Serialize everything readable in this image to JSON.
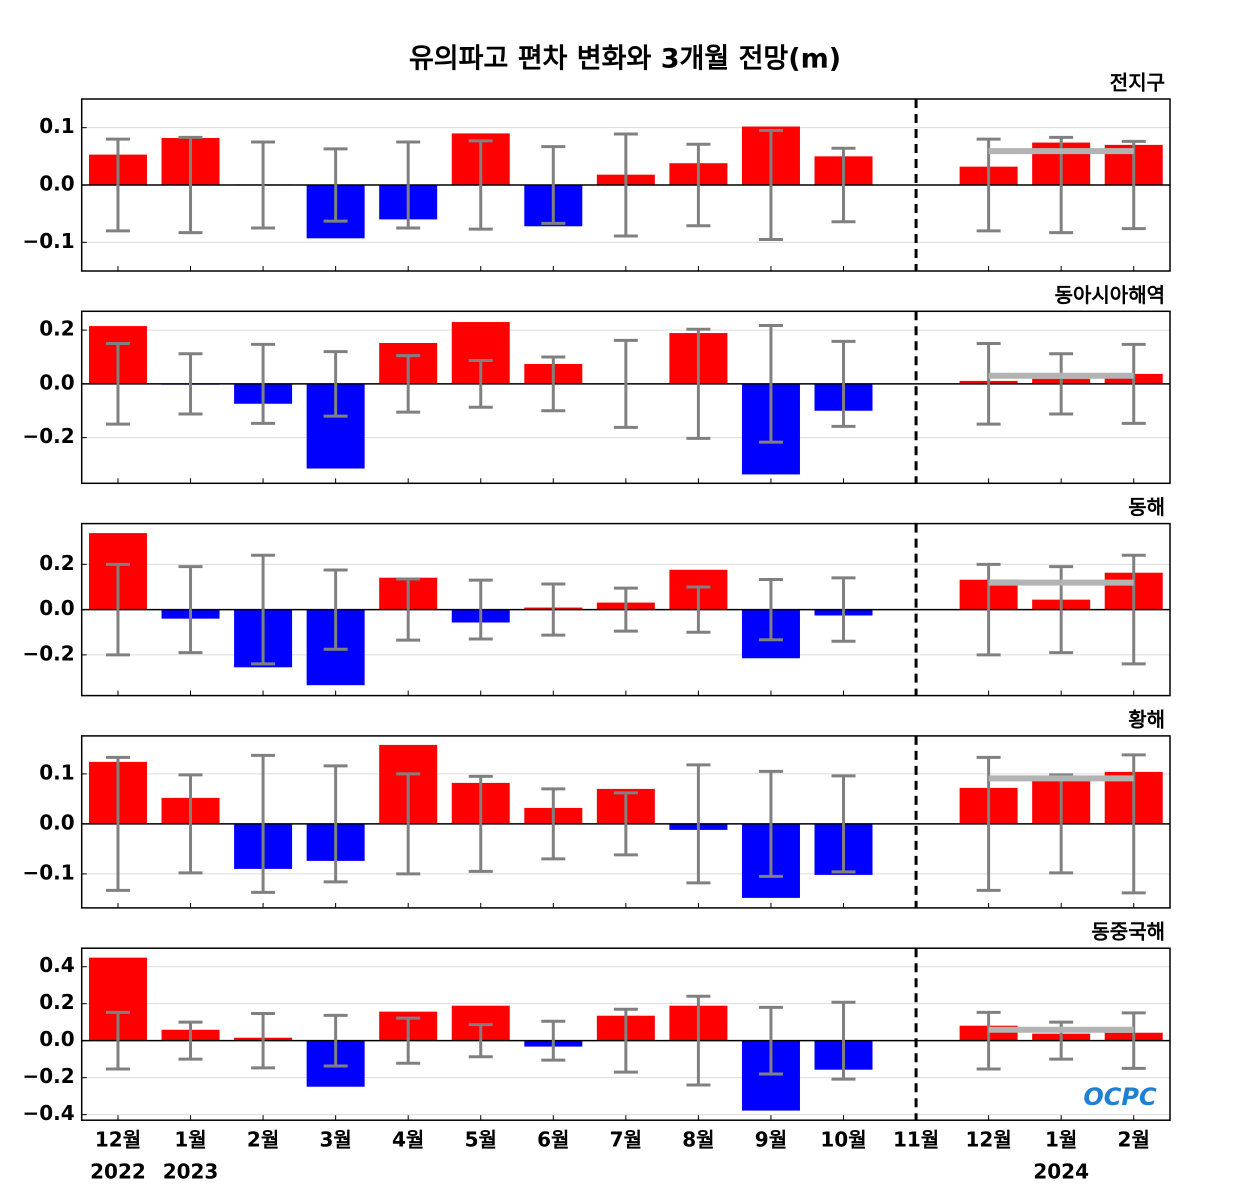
{
  "chart_data": {
    "type": "bar",
    "title": "유의파고 편차 변화와 3개월 전망(m)",
    "categories": [
      "12월",
      "1월",
      "2월",
      "3월",
      "4월",
      "5월",
      "6월",
      "7월",
      "8월",
      "9월",
      "10월",
      "11월",
      "12월",
      "1월",
      "2월"
    ],
    "year_labels": [
      "2022",
      "2023",
      null,
      null,
      null,
      null,
      null,
      null,
      null,
      null,
      null,
      null,
      null,
      "2024",
      null
    ],
    "logo": "OCPC",
    "positive_color": "#ff0000",
    "negative_color": "#0000ff",
    "error_color": "#808080",
    "forecast_color": "#b3b3b3",
    "grid": true,
    "panels": [
      {
        "name": "전지구",
        "values": [
          0.053,
          0.082,
          0.001,
          -0.093,
          -0.06,
          0.09,
          -0.072,
          0.018,
          0.038,
          0.102,
          0.05,
          null,
          0.032,
          0.074,
          0.07
        ],
        "errors": [
          0.08,
          0.083,
          0.075,
          0.063,
          0.075,
          0.077,
          0.067,
          0.089,
          0.071,
          0.095,
          0.064,
          null,
          0.08,
          0.083,
          0.076
        ],
        "forecast_mean": 0.059,
        "ylim": [
          -0.15,
          0.15
        ],
        "yticks": [
          {
            "value": -0.1,
            "label": "−0.1"
          },
          {
            "value": 0,
            "label": "0.0"
          },
          {
            "value": 0.1,
            "label": "0.1"
          }
        ]
      },
      {
        "name": "동아시아해역",
        "values": [
          0.215,
          -0.003,
          -0.074,
          -0.315,
          0.152,
          0.23,
          0.074,
          -0.002,
          0.189,
          -0.337,
          -0.1,
          null,
          0.011,
          0.019,
          0.037
        ],
        "errors": [
          0.15,
          0.112,
          0.147,
          0.12,
          0.105,
          0.087,
          0.1,
          0.162,
          0.203,
          0.217,
          0.158,
          null,
          0.15,
          0.112,
          0.147
        ],
        "forecast_mean": 0.03,
        "ylim": [
          -0.37,
          0.27
        ],
        "yticks": [
          {
            "value": -0.2,
            "label": "−0.2"
          },
          {
            "value": 0,
            "label": "0.0"
          },
          {
            "value": 0.2,
            "label": "0.2"
          }
        ]
      },
      {
        "name": "동해",
        "values": [
          0.338,
          -0.04,
          -0.255,
          -0.334,
          0.141,
          -0.057,
          0.009,
          0.031,
          0.176,
          -0.215,
          -0.026,
          null,
          0.132,
          0.044,
          0.163
        ],
        "errors": [
          0.2,
          0.19,
          0.24,
          0.175,
          0.135,
          0.13,
          0.113,
          0.095,
          0.1,
          0.133,
          0.14,
          null,
          0.2,
          0.19,
          0.24
        ],
        "forecast_mean": 0.119,
        "ylim": [
          -0.38,
          0.38
        ],
        "yticks": [
          {
            "value": -0.2,
            "label": "−0.2"
          },
          {
            "value": 0,
            "label": "0.0"
          },
          {
            "value": 0.2,
            "label": "0.2"
          }
        ]
      },
      {
        "name": "황해",
        "values": [
          0.124,
          0.052,
          -0.09,
          -0.074,
          0.158,
          0.082,
          0.032,
          0.07,
          -0.012,
          -0.148,
          -0.102,
          null,
          0.072,
          0.092,
          0.104
        ],
        "errors": [
          0.133,
          0.098,
          0.137,
          0.116,
          0.1,
          0.095,
          0.07,
          0.062,
          0.118,
          0.105,
          0.096,
          null,
          0.133,
          0.098,
          0.138
        ],
        "forecast_mean": 0.091,
        "ylim": [
          -0.168,
          0.176
        ],
        "yticks": [
          {
            "value": -0.1,
            "label": "−0.1"
          },
          {
            "value": 0,
            "label": "0.0"
          },
          {
            "value": 0.1,
            "label": "0.1"
          }
        ]
      },
      {
        "name": "동중국해",
        "values": [
          0.449,
          0.059,
          0.016,
          -0.249,
          0.157,
          0.189,
          -0.032,
          0.135,
          0.189,
          -0.378,
          -0.157,
          null,
          0.081,
          0.038,
          0.043
        ],
        "errors": [
          0.153,
          0.1,
          0.147,
          0.137,
          0.122,
          0.087,
          0.105,
          0.17,
          0.24,
          0.18,
          0.208,
          null,
          0.153,
          0.1,
          0.15
        ],
        "forecast_mean": 0.059,
        "ylim": [
          -0.43,
          0.5
        ],
        "yticks": [
          {
            "value": -0.4,
            "label": "−0.4"
          },
          {
            "value": -0.2,
            "label": "−0.2"
          },
          {
            "value": 0,
            "label": "0.0"
          },
          {
            "value": 0.2,
            "label": "0.2"
          },
          {
            "value": 0.4,
            "label": "0.4"
          }
        ]
      }
    ]
  }
}
